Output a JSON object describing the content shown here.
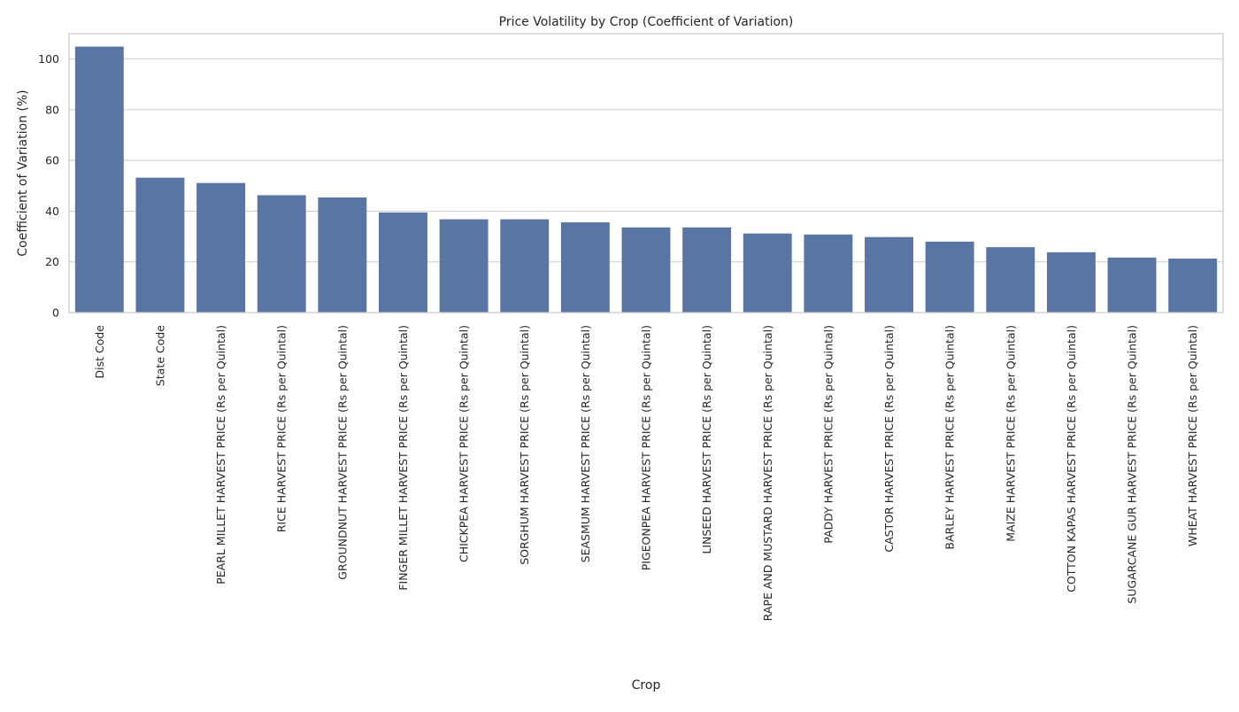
{
  "chart_data": {
    "type": "bar",
    "title": "Price Volatility by Crop (Coefficient of Variation)",
    "xlabel": "Crop",
    "ylabel": "Coefficient of Variation (%)",
    "ylim": [
      0,
      110
    ],
    "yticks": [
      0,
      20,
      40,
      60,
      80,
      100
    ],
    "grid": "horizontal",
    "bar_color": "#5975a4",
    "categories": [
      "Dist Code",
      "State Code",
      "PEARL MILLET HARVEST PRICE (Rs per Quintal)",
      "RICE HARVEST PRICE (Rs per Quintal)",
      "GROUNDNUT HARVEST PRICE (Rs per Quintal)",
      "FINGER MILLET HARVEST PRICE (Rs per Quintal)",
      "CHICKPEA HARVEST PRICE (Rs per Quintal)",
      "SORGHUM HARVEST PRICE (Rs per Quintal)",
      "SEASMUM HARVEST PRICE (Rs per Quintal)",
      "PIGEONPEA HARVEST PRICE (Rs per Quintal)",
      "LINSEED HARVEST PRICE (Rs per Quintal)",
      "RAPE AND MUSTARD HARVEST PRICE (Rs per Quintal)",
      "PADDY HARVEST PRICE (Rs per Quintal)",
      "CASTOR HARVEST PRICE (Rs per Quintal)",
      "BARLEY HARVEST PRICE (Rs per Quintal)",
      "MAIZE HARVEST PRICE (Rs per Quintal)",
      "COTTON KAPAS HARVEST PRICE (Rs per Quintal)",
      "SUGARCANE GUR HARVEST PRICE (Rs per Quintal)",
      "WHEAT HARVEST PRICE (Rs per Quintal)"
    ],
    "values": [
      104.9,
      53.2,
      51.1,
      46.3,
      45.4,
      39.5,
      36.8,
      36.8,
      35.6,
      33.6,
      33.6,
      31.2,
      30.8,
      29.8,
      28.0,
      25.8,
      23.8,
      21.7,
      21.3
    ]
  }
}
